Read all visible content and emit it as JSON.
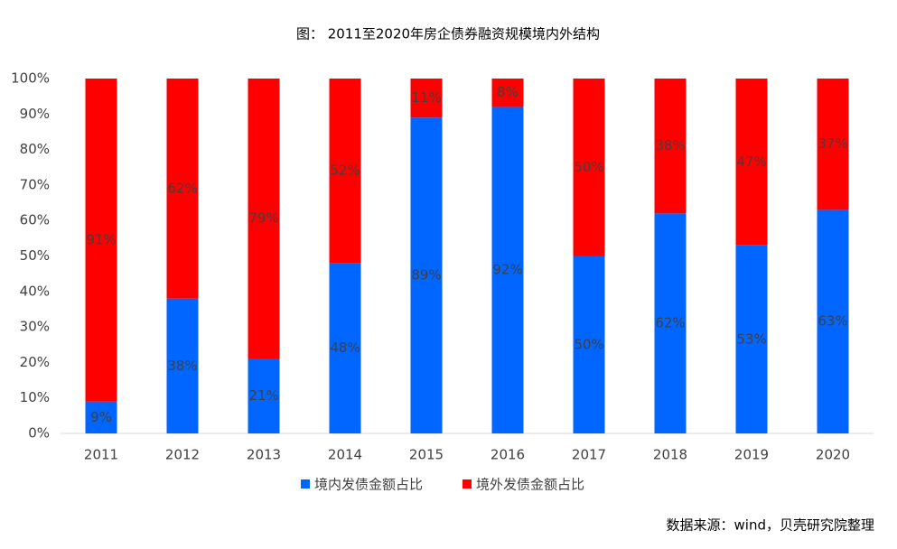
{
  "chart_data": {
    "type": "stacked_bar",
    "title": "图： 2011至2020年房企债券融资规模境内外结构",
    "source": "数据来源：wind，贝壳研究院整理",
    "categories": [
      "2011",
      "2012",
      "2013",
      "2014",
      "2015",
      "2016",
      "2017",
      "2018",
      "2019",
      "2020"
    ],
    "series": [
      {
        "name": "境内发债金额占比",
        "color": "#0066ff",
        "values": [
          9,
          38,
          21,
          48,
          89,
          92,
          50,
          62,
          53,
          63
        ],
        "value_labels": [
          "9%",
          "38%",
          "21%",
          "48%",
          "89%",
          "92%",
          "50%",
          "62%",
          "53%",
          "63%"
        ]
      },
      {
        "name": "境外发债金额占比",
        "color": "#ff0000",
        "values": [
          91,
          62,
          79,
          52,
          11,
          8,
          50,
          38,
          47,
          37
        ],
        "value_labels": [
          "91%",
          "62%",
          "79%",
          "52%",
          "11%",
          "8%",
          "50%",
          "38%",
          "47%",
          "37%"
        ]
      }
    ],
    "ylim": [
      0,
      100
    ],
    "yticks": [
      {
        "value": 0,
        "label": "0%"
      },
      {
        "value": 10,
        "label": "10%"
      },
      {
        "value": 20,
        "label": "20%"
      },
      {
        "value": 30,
        "label": "30%"
      },
      {
        "value": 40,
        "label": "40%"
      },
      {
        "value": 50,
        "label": "50%"
      },
      {
        "value": 60,
        "label": "60%"
      },
      {
        "value": 70,
        "label": "70%"
      },
      {
        "value": 80,
        "label": "80%"
      },
      {
        "value": 90,
        "label": "90%"
      },
      {
        "value": 100,
        "label": "100%"
      }
    ],
    "grid": false
  }
}
